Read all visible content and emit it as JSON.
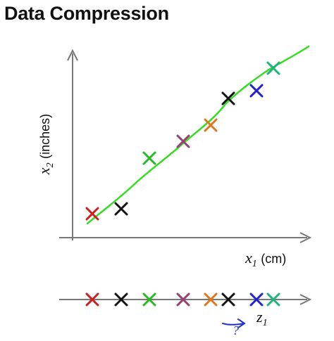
{
  "title": "Data Compression",
  "axes": {
    "x_var": "x",
    "x_sub": "1",
    "x_unit": "(cm)",
    "y_var": "x",
    "y_sub": "2",
    "y_unit": "(inches)"
  },
  "projection": {
    "z_var": "z",
    "z_sub": "1",
    "question_mark": "?"
  },
  "colors": {
    "axis": "#777777",
    "fit_line": "#33dd22",
    "annotation": "#2233cc",
    "points": [
      "#cc1f1f",
      "#111111",
      "#22bb22",
      "#9a3f6f",
      "#e0761c",
      "#111111",
      "#2222cc",
      "#1fb57a"
    ]
  }
}
